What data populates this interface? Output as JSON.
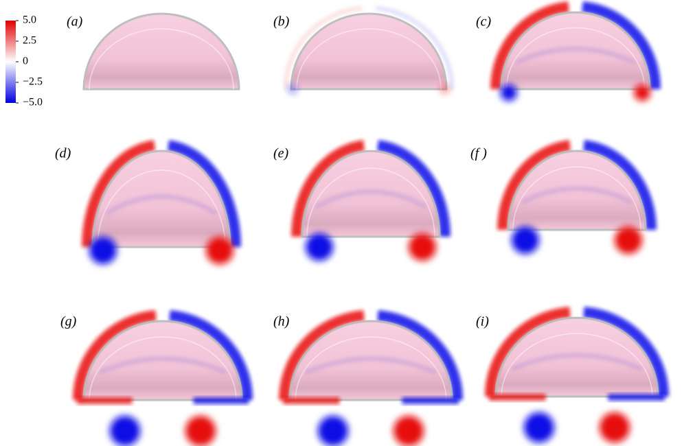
{
  "colorbar": {
    "ticks": [
      {
        "value": 5,
        "label": "5.0"
      },
      {
        "value": 2.5,
        "label": "2.5"
      },
      0,
      {
        "value": -2.5,
        "label": "−2.5"
      },
      {
        "value": -5,
        "label": "−5.0"
      }
    ]
  },
  "panels": [
    {
      "label": "(a)"
    },
    {
      "label": "(b)"
    },
    {
      "label": "(c)"
    },
    {
      "label": "(d)"
    },
    {
      "label": "(e)"
    },
    {
      "label": "(f )"
    },
    {
      "label": "(g)"
    },
    {
      "label": "(h)"
    },
    {
      "label": "(i)"
    }
  ]
}
